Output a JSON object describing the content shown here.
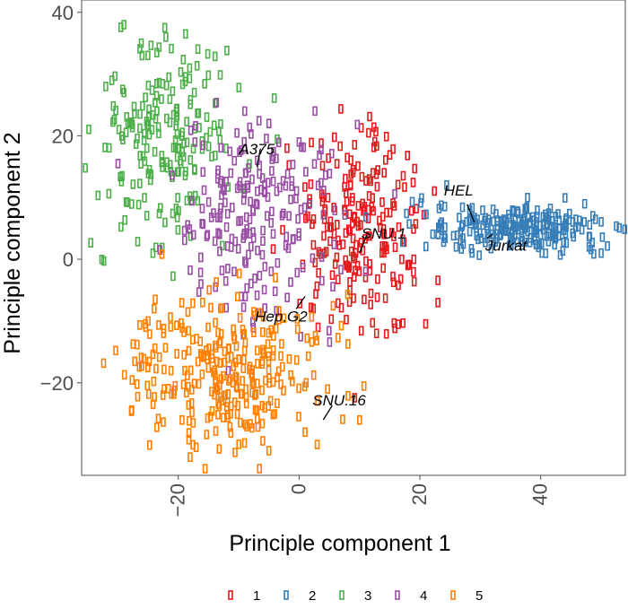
{
  "chart_data": {
    "type": "scatter",
    "xlabel": "Principle component 1",
    "ylabel": "Principle component 2",
    "xlim": [
      -36,
      54
    ],
    "ylim": [
      -35,
      42
    ],
    "xticks": [
      -20,
      0,
      20,
      40
    ],
    "yticks": [
      -20,
      0,
      20,
      40
    ],
    "xtick_labels": [
      "−20",
      "0",
      "20",
      "40"
    ],
    "ytick_labels": [
      "−20",
      "0",
      "20",
      "40"
    ],
    "grid": false,
    "legend_position": "bottom",
    "marker": "open-square",
    "series": [
      {
        "name": "1",
        "color": "#E41A1C",
        "clusters": [
          {
            "cx": 10,
            "cy": 5,
            "sx": 5.2,
            "sy": 8.5,
            "n": 210
          }
        ],
        "points": [
          [
            -2,
            18
          ],
          [
            18,
            -1
          ],
          [
            17,
            0
          ],
          [
            19,
            0
          ]
        ]
      },
      {
        "name": "2",
        "color": "#377EB8",
        "clusters": [
          {
            "cx": 36,
            "cy": 5,
            "sx": 7.5,
            "sy": 2.0,
            "n": 230
          }
        ],
        "points": [
          [
            23,
            4
          ],
          [
            26,
            2
          ],
          [
            48,
            2
          ],
          [
            50,
            1
          ]
        ]
      },
      {
        "name": "3",
        "color": "#4DAF4A",
        "clusters": [
          {
            "cx": -22,
            "cy": 20,
            "sx": 5.5,
            "sy": 8.5,
            "n": 200
          }
        ],
        "points": [
          [
            -29,
            38
          ],
          [
            -32,
            28
          ],
          [
            -29,
            27
          ],
          [
            -26,
            33
          ],
          [
            -31,
            29
          ]
        ]
      },
      {
        "name": "4",
        "color": "#984EA3",
        "clusters": [
          {
            "cx": -8,
            "cy": 6,
            "sx": 7.0,
            "sy": 8.0,
            "n": 210
          }
        ],
        "points": [
          [
            -9,
            24
          ],
          [
            0,
            19
          ],
          [
            -5,
            22
          ]
        ]
      },
      {
        "name": "5",
        "color": "#FF7F00",
        "clusters": [
          {
            "cx": -12,
            "cy": -18,
            "sx": 8.0,
            "sy": 6.0,
            "n": 290
          }
        ],
        "points": [
          [
            -25,
            -10
          ],
          [
            -24,
            -8
          ],
          [
            3,
            -30
          ],
          [
            1,
            -28
          ],
          [
            -5,
            -31
          ]
        ]
      }
    ],
    "annotations": [
      {
        "label": "A375",
        "x": -7,
        "y": 15
      },
      {
        "label": "SNU.1",
        "x": 10,
        "y": 1
      },
      {
        "label": "HEL",
        "x": 29,
        "y": 6
      },
      {
        "label": "Jurkat",
        "x": 32,
        "y": 4
      },
      {
        "label": "Hep.G2",
        "x": 1,
        "y": -6
      },
      {
        "label": "SNU.16",
        "x": 4,
        "y": -26
      }
    ]
  }
}
